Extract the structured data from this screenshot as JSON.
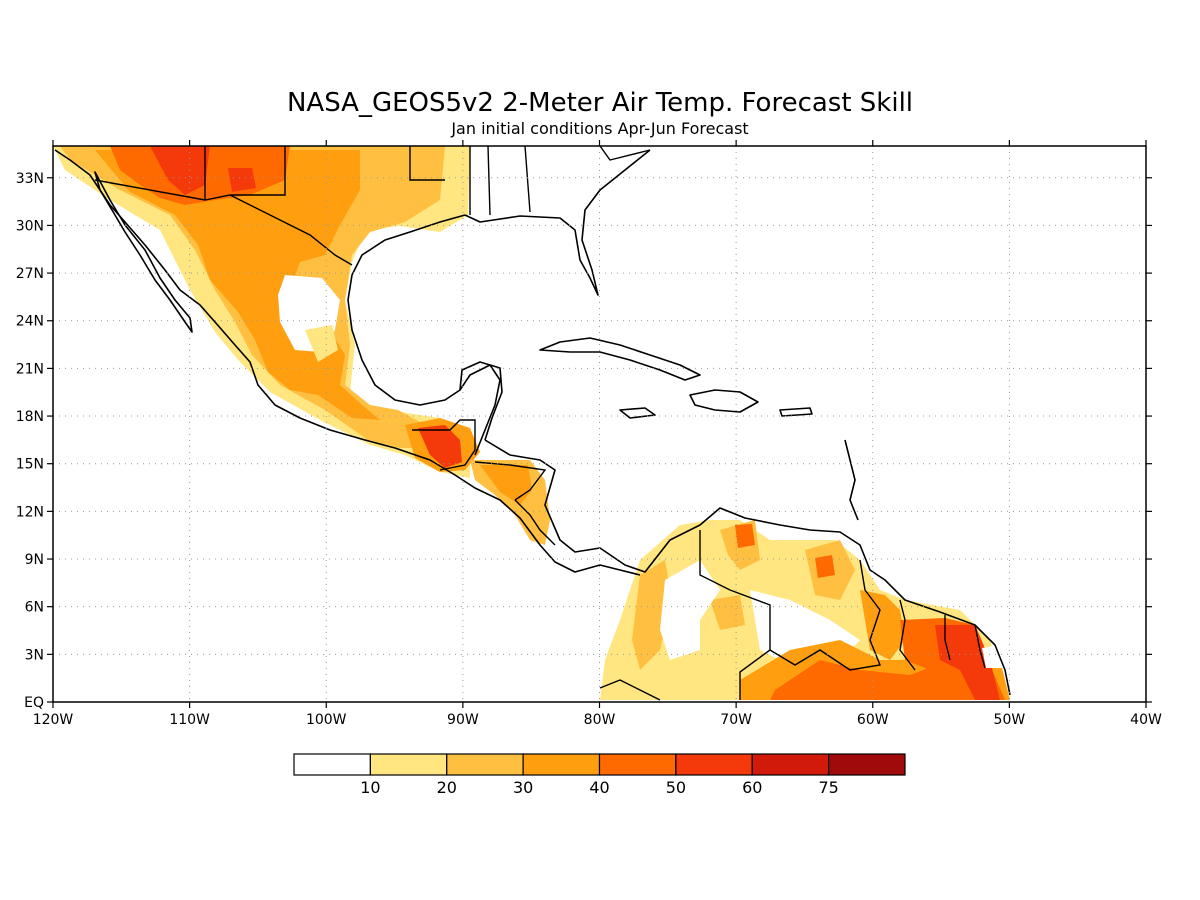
{
  "title": "NASA_GEOS5v2 2-Meter Air Temp. Forecast Skill",
  "subtitle": "Jan initial conditions  Apr-Jun Forecast",
  "map": {
    "lon_range": [
      -120,
      -40
    ],
    "lat_range": [
      0,
      35
    ],
    "gridlines": "dotted",
    "lat_ticks": [
      "33N",
      "30N",
      "27N",
      "24N",
      "21N",
      "18N",
      "15N",
      "12N",
      "9N",
      "6N",
      "3N",
      "EQ"
    ],
    "lon_ticks": [
      "120W",
      "110W",
      "100W",
      "90W",
      "80W",
      "70W",
      "60W",
      "50W",
      "40W"
    ]
  },
  "colorbar": {
    "labels": [
      "10",
      "20",
      "30",
      "40",
      "50",
      "60",
      "75"
    ],
    "colors": [
      "#ffffff",
      "#ffe680",
      "#ffbf40",
      "#ff9f10",
      "#ff6a00",
      "#f43a0a",
      "#d21a0a",
      "#a00a0a"
    ]
  }
}
